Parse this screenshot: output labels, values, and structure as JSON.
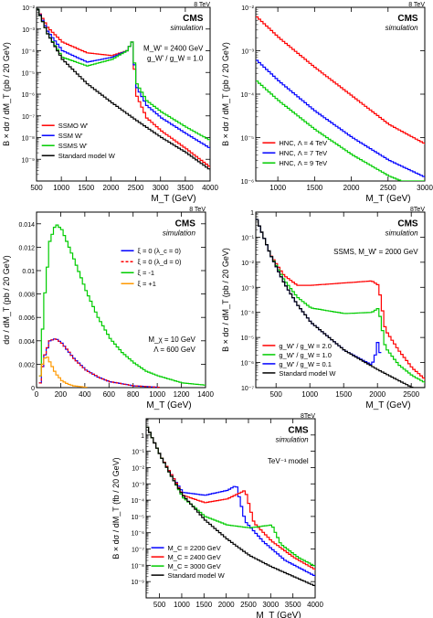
{
  "chart_data": [
    {
      "type": "line",
      "energy": "8 TeV",
      "experiment": "CMS",
      "tag": "simulation",
      "annotations": [
        "M_W' = 2400 GeV",
        "g_W' / g_W = 1.0"
      ],
      "xlabel": "M_T (GeV)",
      "ylabel": "B × dσ / dM_T (pb / 20 GeV)",
      "log_y": true,
      "xlim": [
        500,
        4000
      ],
      "ylim": [
        1e-10,
        0.01
      ],
      "x_ticks": [
        500,
        1000,
        1500,
        2000,
        2500,
        3000,
        3500,
        4000
      ],
      "y_ticks": [
        0.01,
        0.001,
        0.0001,
        1e-05,
        1e-06,
        1e-07,
        1e-08,
        1e-09
      ],
      "y_tick_labels": [
        "10⁻²",
        "10⁻³",
        "10⁻⁴",
        "10⁻⁵",
        "10⁻⁶",
        "10⁻⁷",
        "10⁻⁸",
        "10⁻⁹"
      ],
      "legend_position": "bottom-left",
      "series": [
        {
          "name": "SSMO W'",
          "color": "#ff0000",
          "x": [
            500,
            700,
            1000,
            1500,
            2000,
            2300,
            2400,
            2500,
            2700,
            3000,
            3500,
            4000
          ],
          "y": [
            0.008,
            0.0012,
            0.00025,
            8e-05,
            6e-05,
            0.0001,
            0.00025,
            8e-07,
            8e-08,
            2e-08,
            3e-09,
            4e-10
          ]
        },
        {
          "name": "SSM W'",
          "color": "#0000ff",
          "x": [
            500,
            700,
            1000,
            1500,
            2000,
            2300,
            2400,
            2500,
            2700,
            3000,
            3500,
            4000
          ],
          "y": [
            0.008,
            0.0008,
            0.0001,
            3e-05,
            5e-05,
            0.0001,
            0.00025,
            2e-06,
            3e-07,
            8e-08,
            1.5e-08,
            3e-09
          ]
        },
        {
          "name": "SSMS W'",
          "color": "#00cc00",
          "x": [
            500,
            700,
            1000,
            1500,
            2000,
            2300,
            2400,
            2500,
            2700,
            3000,
            3500,
            4000
          ],
          "y": [
            0.008,
            0.0006,
            5e-05,
            2e-05,
            4e-05,
            0.0001,
            0.00025,
            3e-06,
            5e-07,
            1.5e-07,
            3e-08,
            7e-09
          ]
        },
        {
          "name": "Standard model W",
          "color": "#000000",
          "x": [
            500,
            700,
            1000,
            1500,
            2000,
            2500,
            3000,
            3500,
            4000
          ],
          "y": [
            0.008,
            0.0006,
            4e-05,
            3e-06,
            4e-07,
            6e-08,
            1e-08,
            2e-09,
            3e-10
          ]
        }
      ]
    },
    {
      "type": "line",
      "energy": "8 TeV",
      "experiment": "CMS",
      "tag": "simulation",
      "xlabel": "M_T (GeV)",
      "ylabel": "B × dσ / dM_T (pb / 20 GeV)",
      "log_y": true,
      "xlim": [
        700,
        3000
      ],
      "ylim": [
        1e-06,
        0.01
      ],
      "x_ticks": [
        1000,
        1500,
        2000,
        2500,
        3000
      ],
      "y_ticks": [
        0.01,
        0.001,
        0.0001,
        1e-05,
        1e-06
      ],
      "y_tick_labels": [
        "10⁻²",
        "10⁻³",
        "10⁻⁴",
        "10⁻⁵",
        "10⁻⁶"
      ],
      "legend_position": "bottom-left",
      "series": [
        {
          "name": "HNC, Λ = 4 TeV",
          "color": "#ff0000",
          "x": [
            700,
            1000,
            1500,
            2000,
            2500,
            3000
          ],
          "y": [
            0.006,
            0.002,
            0.0004,
            9e-05,
            2e-05,
            7e-06
          ]
        },
        {
          "name": "HNC, Λ = 7 TeV",
          "color": "#0000ff",
          "x": [
            700,
            1000,
            1500,
            2000,
            2500,
            3000
          ],
          "y": [
            0.0006,
            0.0002,
            4e-05,
            1e-05,
            3e-06,
            1.2e-06
          ]
        },
        {
          "name": "HNC, Λ = 9 TeV",
          "color": "#00cc00",
          "x": [
            700,
            1000,
            1500,
            2000,
            2500,
            3000
          ],
          "y": [
            0.0002,
            7e-05,
            1.5e-05,
            4e-06,
            1.3e-06,
            6e-07
          ]
        }
      ]
    },
    {
      "type": "line",
      "energy": "8 TeV",
      "experiment": "CMS",
      "tag": "simulation",
      "annotations": [
        "M_χ = 10 GeV",
        "Λ = 600 GeV"
      ],
      "xlabel": "M_T (GeV)",
      "ylabel": "dσ / dM_T (pb / 20 GeV)",
      "log_y": false,
      "xlim": [
        0,
        1400
      ],
      "ylim": [
        0,
        0.015
      ],
      "x_ticks": [
        0,
        200,
        400,
        600,
        800,
        1000,
        1200,
        1400
      ],
      "y_ticks": [
        0,
        0.002,
        0.004,
        0.006,
        0.008,
        0.01,
        0.012,
        0.014
      ],
      "y_tick_labels": [
        "0",
        "0.002",
        "0.004",
        "0.006",
        "0.008",
        "0.01",
        "0.012",
        "0.014"
      ],
      "legend_position": "top-right",
      "series": [
        {
          "name": "ξ = 0 (λ_c = 0)",
          "color": "#0000ff",
          "x": [
            20,
            50,
            100,
            150,
            200,
            300,
            400,
            500,
            600,
            800,
            1000
          ],
          "y": [
            0.0004,
            0.0025,
            0.004,
            0.0042,
            0.0038,
            0.0025,
            0.0015,
            0.0009,
            0.0005,
            0.00015,
            3e-05
          ]
        },
        {
          "name": "ξ = 0 (λ_d = 0)",
          "color": "#ff0000",
          "dashed": true,
          "x": [
            20,
            50,
            100,
            150,
            200,
            300,
            400,
            500,
            600,
            800,
            1000
          ],
          "y": [
            0.0004,
            0.0025,
            0.004,
            0.0042,
            0.0038,
            0.0025,
            0.0015,
            0.0009,
            0.0005,
            0.00015,
            3e-05
          ]
        },
        {
          "name": "ξ = -1",
          "color": "#00cc00",
          "x": [
            20,
            50,
            100,
            150,
            200,
            300,
            400,
            500,
            600,
            700,
            800,
            900,
            1000,
            1100,
            1200,
            1300,
            1400
          ],
          "y": [
            0.001,
            0.007,
            0.0125,
            0.014,
            0.0135,
            0.011,
            0.0083,
            0.006,
            0.0042,
            0.003,
            0.0021,
            0.0014,
            0.001,
            0.0007,
            0.0004,
            0.0003,
            0.0002
          ]
        },
        {
          "name": "ξ = +1",
          "color": "#ff9900",
          "x": [
            20,
            50,
            80,
            100,
            150,
            200,
            250,
            300,
            400
          ],
          "y": [
            0.001,
            0.0025,
            0.0026,
            0.0022,
            0.0012,
            0.0006,
            0.0003,
            0.00015,
            3e-05
          ]
        }
      ]
    },
    {
      "type": "line",
      "energy": "8TeV",
      "experiment": "CMS",
      "tag": "simulation",
      "annotations": [
        "SSMS, M_W' = 2000 GeV"
      ],
      "xlabel": "M_T (GeV)",
      "ylabel": "B × dσ / dM_T (pb / 20 GeV)",
      "log_y": true,
      "xlim": [
        200,
        2700
      ],
      "ylim": [
        1e-07,
        1
      ],
      "x_ticks": [
        500,
        1000,
        1500,
        2000,
        2500
      ],
      "y_ticks": [
        1,
        0.1,
        0.01,
        0.001,
        0.0001,
        1e-05,
        1e-06,
        1e-07
      ],
      "y_tick_labels": [
        "1",
        "10⁻¹",
        "10⁻²",
        "10⁻³",
        "10⁻⁴",
        "10⁻⁵",
        "10⁻⁶",
        "10⁻⁷"
      ],
      "legend_position": "bottom-left",
      "series": [
        {
          "name": "g_W' / g_W = 2.0",
          "color": "#ff0000",
          "x": [
            200,
            400,
            600,
            800,
            1000,
            1500,
            1900,
            2000,
            2100,
            2300,
            2500,
            2700
          ],
          "y": [
            0.5,
            0.02,
            0.003,
            0.0012,
            0.0012,
            0.0015,
            0.0018,
            0.0012,
            2e-05,
            3e-06,
            6e-07,
            2e-07
          ]
        },
        {
          "name": "g_W' / g_W = 1.0",
          "color": "#00cc00",
          "x": [
            200,
            400,
            600,
            800,
            1000,
            1500,
            1900,
            2000,
            2100,
            2300,
            2500,
            2700
          ],
          "y": [
            0.5,
            0.02,
            0.002,
            0.0004,
            0.00015,
            9e-05,
            0.0001,
            0.00015,
            4e-06,
            8e-07,
            3e-07,
            1.5e-07
          ]
        },
        {
          "name": "g_W' / g_W = 0.1",
          "color": "#0000ff",
          "x": [
            200,
            400,
            600,
            800,
            1000,
            1500,
            1900,
            1950,
            2000,
            2050
          ],
          "y": [
            0.5,
            0.02,
            0.0015,
            0.0002,
            4e-05,
            3e-06,
            8e-07,
            2e-06,
            1e-05,
            4e-07
          ]
        },
        {
          "name": "Standard model W",
          "color": "#000000",
          "x": [
            200,
            400,
            600,
            800,
            1000,
            1500,
            2000,
            2500,
            2700
          ],
          "y": [
            0.5,
            0.02,
            0.0015,
            0.0002,
            4e-05,
            3e-06,
            5e-07,
            1e-07,
            7e-08
          ]
        }
      ]
    },
    {
      "type": "line",
      "energy": "8TeV",
      "experiment": "CMS",
      "tag": "simulation",
      "annotations": [
        "TeV⁻¹ model"
      ],
      "xlabel": "M_T (GeV)",
      "ylabel": "B × dσ / dM_T (fb / 20 GeV)",
      "log_y": true,
      "xlim": [
        200,
        4000
      ],
      "ylim": [
        1e-10,
        10
      ],
      "x_ticks": [
        500,
        1000,
        1500,
        2000,
        2500,
        3000,
        3500,
        4000
      ],
      "y_ticks": [
        1,
        0.1,
        0.01,
        0.001,
        0.0001,
        1e-05,
        1e-06,
        1e-07,
        1e-08,
        1e-09
      ],
      "y_tick_labels": [
        "1",
        "10⁻¹",
        "10⁻²",
        "10⁻³",
        "10⁻⁴",
        "10⁻⁵",
        "10⁻⁶",
        "10⁻⁷",
        "10⁻⁸",
        "10⁻⁹"
      ],
      "legend_position": "bottom-left",
      "series": [
        {
          "name": "M_C = 2200 GeV",
          "color": "#0000ff",
          "x": [
            200,
            500,
            800,
            1000,
            1500,
            2000,
            2200,
            2400,
            2800,
            3300,
            4000
          ],
          "y": [
            3,
            0.05,
            0.002,
            0.0003,
            0.0002,
            0.0004,
            0.0008,
            5e-06,
            3e-07,
            2e-08,
            2e-09
          ]
        },
        {
          "name": "M_C = 2400 GeV",
          "color": "#ff0000",
          "x": [
            200,
            500,
            800,
            1000,
            1500,
            2000,
            2400,
            2600,
            3000,
            3500,
            4000
          ],
          "y": [
            3,
            0.05,
            0.002,
            0.0002,
            7e-05,
            0.00012,
            0.0004,
            4e-06,
            3e-07,
            3e-08,
            5e-09
          ]
        },
        {
          "name": "M_C = 3000 GeV",
          "color": "#00cc00",
          "x": [
            200,
            500,
            800,
            1000,
            1500,
            2000,
            2500,
            3000,
            3200,
            3600,
            4000
          ],
          "y": [
            3,
            0.05,
            0.0015,
            0.00015,
            1e-05,
            3e-06,
            2e-06,
            3e-06,
            2e-07,
            3e-08,
            8e-09
          ]
        },
        {
          "name": "Standard model W",
          "color": "#000000",
          "x": [
            200,
            500,
            800,
            1000,
            1500,
            2000,
            2500,
            3000,
            3500,
            4000
          ],
          "y": [
            3,
            0.05,
            0.0015,
            0.0002,
            6e-06,
            4e-07,
            4e-08,
            8e-09,
            2e-09,
            5e-10
          ]
        }
      ]
    }
  ]
}
